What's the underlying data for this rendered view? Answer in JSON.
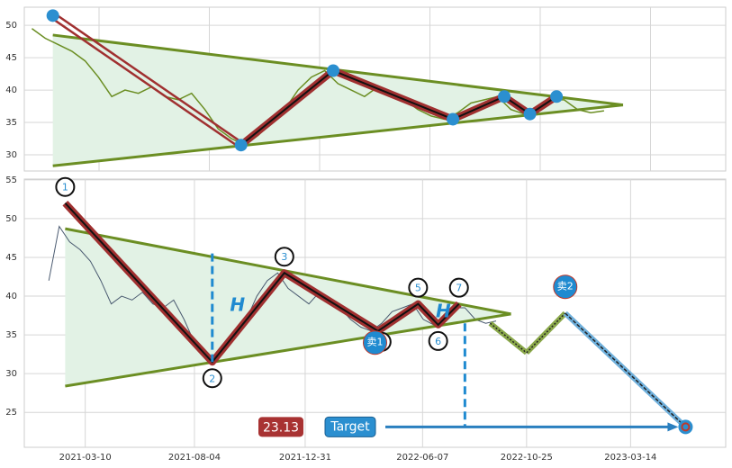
{
  "chart_data": [
    {
      "type": "line",
      "xlim": [
        "2021-01-12",
        "2023-01-20"
      ],
      "ylim": [
        27.5,
        52.8
      ],
      "yticks": [
        30,
        35,
        40,
        45,
        50
      ],
      "grid": true,
      "x": [
        "2021-01-20",
        "2021-02-03",
        "2021-02-17",
        "2021-03-03",
        "2021-03-17",
        "2021-03-31",
        "2021-04-14",
        "2021-04-28",
        "2021-05-12",
        "2021-05-26",
        "2021-06-09",
        "2021-06-23",
        "2021-07-07",
        "2021-07-21",
        "2021-08-04",
        "2021-08-18",
        "2021-09-01",
        "2021-09-15",
        "2021-09-29",
        "2021-10-13",
        "2021-10-27",
        "2021-11-10",
        "2021-11-24",
        "2021-12-08",
        "2021-12-22",
        "2022-01-05",
        "2022-01-19",
        "2022-02-02",
        "2022-02-16",
        "2022-03-02",
        "2022-03-16",
        "2022-03-30",
        "2022-04-13",
        "2022-04-27",
        "2022-05-11",
        "2022-05-25",
        "2022-06-08",
        "2022-06-22",
        "2022-07-06",
        "2022-07-20",
        "2022-08-03",
        "2022-08-17",
        "2022-08-31",
        "2022-09-14"
      ],
      "series": [
        {
          "color": "#6b8e23",
          "values": [
            49.5,
            48,
            47,
            46,
            44.5,
            42,
            39,
            40,
            39.5,
            40.5,
            39,
            38.5,
            39.5,
            37,
            34,
            32.5,
            31.5,
            33,
            35,
            37,
            40,
            42,
            43,
            41,
            40,
            39,
            40.5,
            39,
            38.5,
            37,
            36,
            35.5,
            36.5,
            38,
            38.5,
            39,
            37,
            36.3,
            37.5,
            38.5,
            38.5,
            37,
            36.5,
            36.8
          ]
        }
      ],
      "trendlines": [
        {
          "color": "#6b8e23",
          "x": [
            "2021-02-11",
            "2022-10-04"
          ],
          "values": [
            48.5,
            37.7
          ]
        },
        {
          "color": "#6b8e23",
          "x": [
            "2021-02-11",
            "2022-10-04"
          ],
          "values": [
            28.3,
            37.7
          ]
        }
      ],
      "pattern": {
        "color": "#a03030",
        "marker": "#2b8fd0",
        "x": [
          "2021-02-11",
          "2021-08-28",
          "2021-12-03",
          "2022-04-08",
          "2022-06-01",
          "2022-06-28",
          "2022-07-26"
        ],
        "values": [
          51.5,
          31.5,
          43,
          35.5,
          39,
          36.3,
          39
        ]
      }
    },
    {
      "type": "line",
      "xlim": [
        "2020-12-18",
        "2023-07-20"
      ],
      "ylim": [
        20.5,
        55.1
      ],
      "yticks": [
        25,
        30,
        35,
        40,
        45,
        50,
        55
      ],
      "grid": true,
      "xticks": [
        "2021-03-10",
        "2021-08-04",
        "2021-12-31",
        "2022-06-07",
        "2022-10-25",
        "2023-03-14"
      ],
      "x": [
        "2021-01-20",
        "2021-02-03",
        "2021-02-17",
        "2021-03-03",
        "2021-03-17",
        "2021-03-31",
        "2021-04-14",
        "2021-04-28",
        "2021-05-12",
        "2021-05-26",
        "2021-06-09",
        "2021-06-23",
        "2021-07-07",
        "2021-07-21",
        "2021-08-04",
        "2021-08-18",
        "2021-09-01",
        "2021-09-15",
        "2021-09-29",
        "2021-10-13",
        "2021-10-27",
        "2021-11-10",
        "2021-11-24",
        "2021-12-08",
        "2021-12-22",
        "2022-01-05",
        "2022-01-19",
        "2022-02-02",
        "2022-02-16",
        "2022-03-02",
        "2022-03-16",
        "2022-03-30",
        "2022-04-13",
        "2022-04-27",
        "2022-05-11",
        "2022-05-25",
        "2022-06-08",
        "2022-06-22",
        "2022-07-06",
        "2022-07-20",
        "2022-08-03",
        "2022-08-17",
        "2022-08-31",
        "2022-09-14"
      ],
      "series": [
        {
          "color": "#4a5a70",
          "values": [
            42,
            49,
            47,
            46,
            44.5,
            42,
            39,
            40,
            39.5,
            40.5,
            39,
            38.5,
            39.5,
            37,
            34,
            32.5,
            31.5,
            33,
            35,
            37,
            40,
            42,
            43,
            41,
            40,
            39,
            40.5,
            39,
            38.5,
            37,
            36,
            35.5,
            36.5,
            38,
            38.5,
            39,
            37,
            36.3,
            37.5,
            38.5,
            38.5,
            37,
            36.5,
            36.8
          ]
        }
      ],
      "trendlines": [
        {
          "color": "#6b8e23",
          "x": [
            "2021-02-11",
            "2022-10-04"
          ],
          "values": [
            48.7,
            37.7
          ]
        },
        {
          "color": "#6b8e23",
          "x": [
            "2021-02-11",
            "2022-10-04"
          ],
          "values": [
            28.4,
            37.7
          ]
        }
      ],
      "pattern": {
        "color": "#a03030",
        "x": [
          "2021-02-11",
          "2021-08-28",
          "2021-12-03",
          "2022-04-08",
          "2022-06-01",
          "2022-06-28",
          "2022-07-26"
        ],
        "values": [
          52,
          31.5,
          43,
          35.5,
          39,
          36.3,
          39
        ],
        "labels": [
          "1",
          "2",
          "3",
          "4",
          "5",
          "6",
          "7"
        ]
      },
      "projection": {
        "x": [
          "2022-09-06",
          "2022-10-25",
          "2022-12-16",
          "2023-05-27"
        ],
        "values": [
          36.5,
          32.7,
          37.8,
          23.13
        ]
      },
      "signals": [
        {
          "label": "卖1",
          "x": "2022-04-04",
          "value": 34
        },
        {
          "label": "卖2",
          "x": "2022-12-16",
          "value": 41.2
        }
      ],
      "heights": [
        {
          "label": "H",
          "x": "2021-08-28",
          "values": [
            45.5,
            31.5
          ]
        },
        {
          "label": "H",
          "x": "2022-08-03",
          "values": [
            36.5,
            23.13
          ]
        }
      ],
      "target": {
        "label": "Target",
        "value": 23.13,
        "value_label": "23.13"
      }
    }
  ]
}
